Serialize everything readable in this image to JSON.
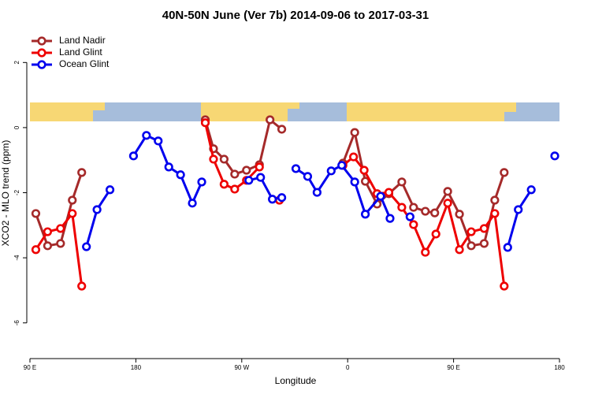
{
  "chart_data": {
    "type": "line",
    "title": "40N-50N June (Ver 7b)   2014-09-06 to 2017-03-31",
    "xlabel": "Longitude",
    "ylabel": "XCO2 - MLO trend (ppm)",
    "xlim": [
      -270,
      180
    ],
    "ylim": [
      -7,
      3
    ],
    "xticks": [
      {
        "value": -270,
        "label": "90 E"
      },
      {
        "value": -180,
        "label": "180"
      },
      {
        "value": -90,
        "label": "90 W"
      },
      0,
      {
        "value": 90,
        "label": "90 E"
      },
      180
    ],
    "yticks": [
      -6,
      -4,
      -2,
      0,
      2
    ],
    "legend": "top-left",
    "series": [
      {
        "name": "Land Nadir",
        "color": "#a52a2a",
        "x": [
          -265,
          -255,
          -244,
          -234,
          -226,
          null,
          -121,
          -114,
          -105,
          -96,
          -86,
          -75,
          -66,
          -56,
          null,
          -4,
          6,
          15,
          25,
          35,
          46,
          56,
          66,
          74,
          85,
          95,
          105,
          116,
          125,
          133
        ],
        "values": [
          -2.64,
          -3.63,
          -3.56,
          -2.23,
          -1.38,
          null,
          0.24,
          -0.65,
          -0.97,
          -1.43,
          -1.31,
          -1.14,
          0.24,
          -0.05,
          null,
          -1.09,
          -0.15,
          -1.65,
          -2.35,
          -2.03,
          -1.67,
          -2.45,
          -2.57,
          -2.62,
          -1.96,
          -2.66,
          -3.63,
          -3.56,
          -2.23,
          -1.38
        ]
      },
      {
        "name": "Land Glint",
        "color": "#ee0000",
        "x": [
          -265,
          -255,
          -244,
          -234,
          -226,
          null,
          -121,
          -114,
          -105,
          -96,
          -86,
          -75,
          null,
          -58,
          null,
          -4,
          5,
          14,
          25,
          35,
          46,
          56,
          66,
          75,
          85,
          95,
          105,
          116,
          125,
          133
        ],
        "values": [
          -3.75,
          -3.2,
          -3.1,
          -2.64,
          -4.87,
          null,
          0.15,
          -0.97,
          -1.74,
          -1.89,
          -1.62,
          -1.21,
          null,
          -2.23,
          null,
          -1.16,
          -0.9,
          -1.31,
          -2.03,
          -1.99,
          -2.45,
          -2.98,
          -3.83,
          -3.27,
          -2.32,
          -3.75,
          -3.2,
          -3.1,
          -2.64,
          -4.87
        ]
      },
      {
        "name": "Ocean Glint",
        "color": "#0000ee",
        "x": [
          -222,
          -213,
          -202,
          null,
          -182,
          -171,
          -161,
          -152,
          -142,
          -132,
          -124,
          null,
          -84,
          -74,
          -64,
          -56,
          null,
          -44,
          -34,
          -26,
          -14,
          -5,
          6,
          15,
          28,
          36,
          null,
          53,
          null,
          136,
          145,
          156,
          null,
          176
        ],
        "values": [
          -3.66,
          -2.52,
          -1.91,
          null,
          -0.87,
          -0.24,
          -0.41,
          -1.21,
          -1.45,
          -2.32,
          -1.67,
          null,
          -1.62,
          -1.53,
          -2.2,
          -2.15,
          null,
          -1.26,
          -1.5,
          -1.99,
          -1.33,
          -1.16,
          -1.67,
          -2.66,
          -2.11,
          -2.79,
          null,
          -2.74,
          null,
          -3.68,
          -2.52,
          -1.91,
          null,
          -0.87
        ]
      }
    ]
  }
}
